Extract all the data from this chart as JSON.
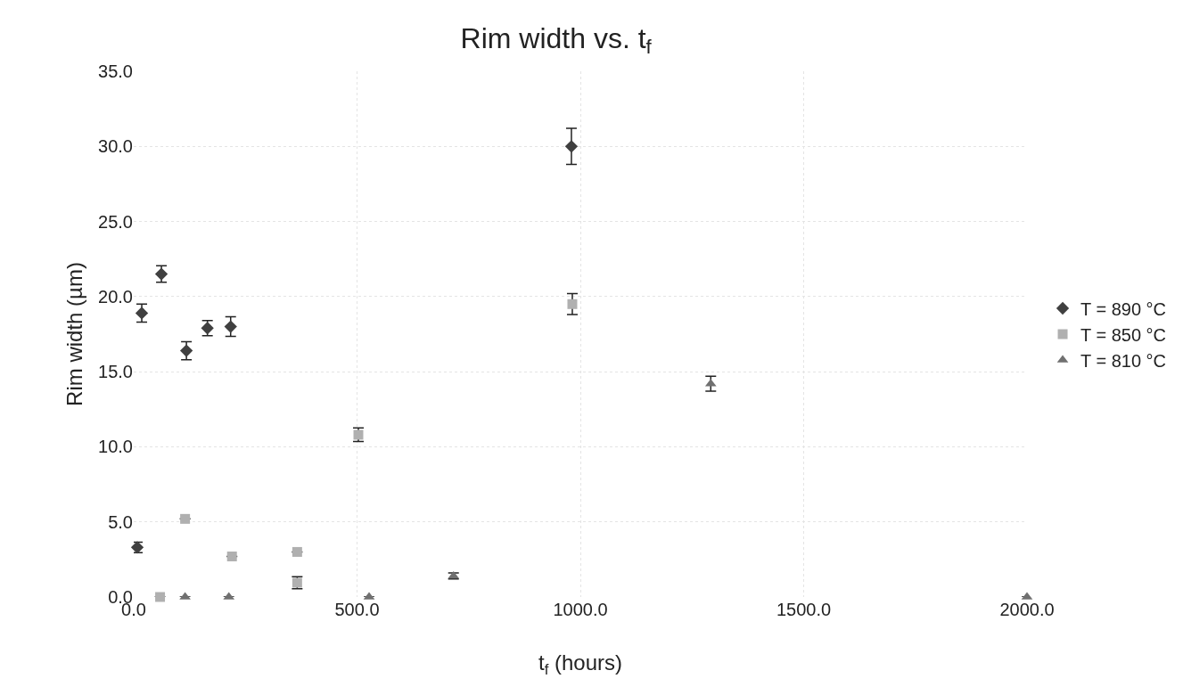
{
  "chart_data": {
    "type": "scatter",
    "title": "Rim width vs. t$_{f}$",
    "xlabel": "t$_{f}$ (hours)",
    "ylabel": "Rim width (µm)",
    "xlim": [
      0,
      2000
    ],
    "xticks": [
      {
        "value": 0,
        "label": "0.0"
      },
      {
        "value": 500,
        "label": "500.0"
      },
      {
        "value": 1000,
        "label": "1000.0"
      },
      {
        "value": 1500,
        "label": "1500.0"
      },
      {
        "value": 2000,
        "label": "2000.0"
      }
    ],
    "ylim": [
      0,
      35
    ],
    "yticks": [
      {
        "value": 0,
        "label": "0.0"
      },
      {
        "value": 5,
        "label": "5.0"
      },
      {
        "value": 10,
        "label": "10.0"
      },
      {
        "value": 15,
        "label": "15.0"
      },
      {
        "value": 20,
        "label": "20.0"
      },
      {
        "value": 25,
        "label": "25.0"
      },
      {
        "value": 30,
        "label": "30.0"
      },
      {
        "value": 35,
        "label": "35.0"
      }
    ],
    "grid": true,
    "legend": "right",
    "series": [
      {
        "name": "T = 890 °C",
        "color": "#404040",
        "marker": "diamond",
        "x": [
          8,
          18,
          62,
          118,
          165,
          217,
          980
        ],
        "values": [
          3.3,
          18.9,
          21.5,
          16.4,
          17.9,
          18.0,
          30.0
        ],
        "errors": [
          0.35,
          0.6,
          0.55,
          0.6,
          0.5,
          0.65,
          1.2
        ]
      },
      {
        "name": "T = 850 °C",
        "color": "#b0b0b0",
        "marker": "square",
        "x": [
          59,
          115,
          220,
          366,
          366,
          503,
          982
        ],
        "values": [
          0,
          5.2,
          2.7,
          3.0,
          0.95,
          10.8,
          19.5
        ],
        "errors": [
          null,
          null,
          null,
          null,
          0.4,
          0.45,
          0.7
        ]
      },
      {
        "name": "T = 810 °C",
        "color": "#707070",
        "marker": "triangle",
        "x": [
          115,
          213,
          527,
          716,
          1292,
          2000
        ],
        "values": [
          0,
          0,
          0,
          1.4,
          14.2,
          0
        ],
        "errors": [
          null,
          null,
          null,
          0.2,
          0.5,
          null
        ]
      }
    ]
  }
}
